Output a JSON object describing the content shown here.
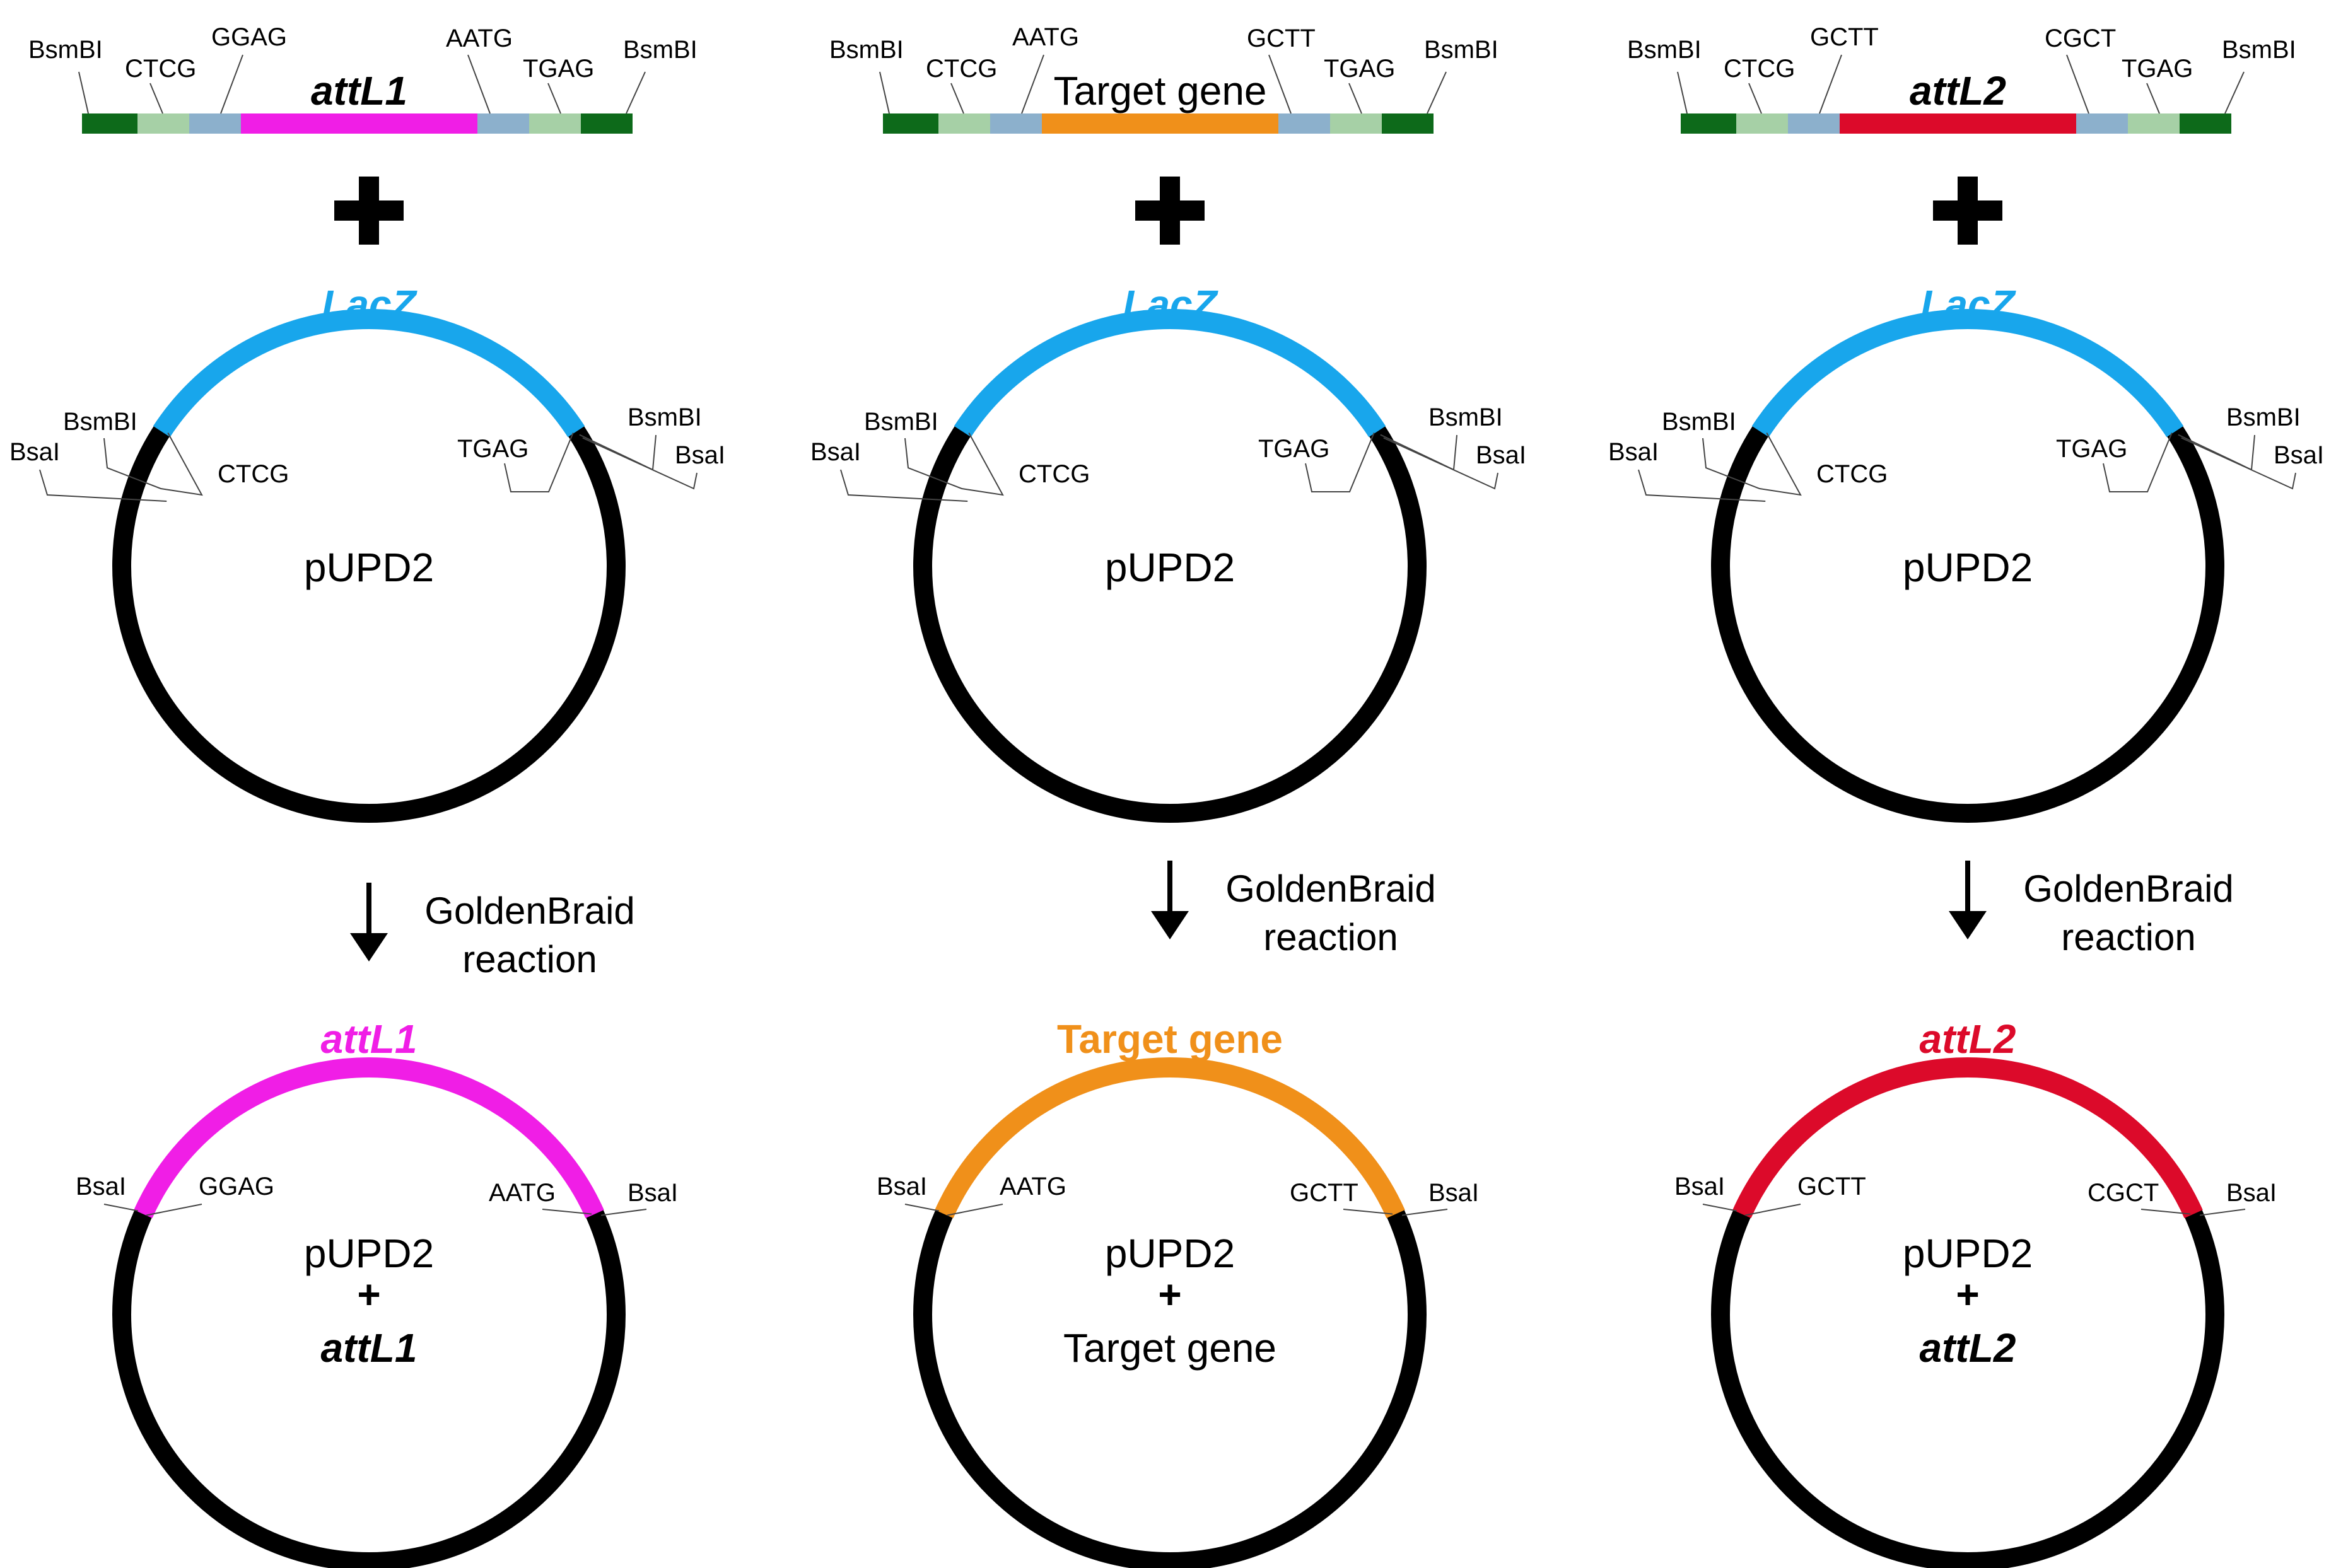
{
  "colors": {
    "bsmbi": "#0d6a1a",
    "light_green": "#a6d0a6",
    "light_blue": "#8cb0cc",
    "lacz": "#18a6ec",
    "backbone": "#000000",
    "attL1": "#f01ee6",
    "target": "#f0901a",
    "attL2": "#dc0a2a"
  },
  "panels": [
    {
      "insert": {
        "label": "attL1",
        "italic": true,
        "color_key": "attL1",
        "left_site": "BsmBI",
        "left_oh_outer": "CTCG",
        "left_oh_inner": "GGAG",
        "right_oh_inner": "AATG",
        "right_oh_outer": "TGAG",
        "right_site": "BsmBI"
      },
      "plus_icon": "plus-icon",
      "vector": {
        "arc_label": "LacZ",
        "name": "pUPD2",
        "left_bsai": "BsaI",
        "left_bsmbi": "BsmBI",
        "left_oh": "CTCG",
        "right_oh": "TGAG",
        "right_bsmbi": "BsmBI",
        "right_bsai": "BsaI"
      },
      "reaction": {
        "line1": "GoldenBraid",
        "line2": "reaction"
      },
      "product": {
        "arc_label": "attL1",
        "italic": true,
        "color_key": "attL1",
        "name_line1": "pUPD2",
        "name_line2": "+",
        "name_line3": "attL1",
        "left_site": "BsaI",
        "left_oh": "GGAG",
        "right_oh": "AATG",
        "right_site": "BsaI"
      }
    },
    {
      "insert": {
        "label": "Target gene",
        "italic": false,
        "color_key": "target",
        "left_site": "BsmBI",
        "left_oh_outer": "CTCG",
        "left_oh_inner": "AATG",
        "right_oh_inner": "GCTT",
        "right_oh_outer": "TGAG",
        "right_site": "BsmBI"
      },
      "plus_icon": "plus-icon",
      "vector": {
        "arc_label": "LacZ",
        "name": "pUPD2",
        "left_bsai": "BsaI",
        "left_bsmbi": "BsmBI",
        "left_oh": "CTCG",
        "right_oh": "TGAG",
        "right_bsmbi": "BsmBI",
        "right_bsai": "BsaI"
      },
      "reaction": {
        "line1": "GoldenBraid",
        "line2": "reaction"
      },
      "product": {
        "arc_label": "Target gene",
        "italic": false,
        "color_key": "target",
        "name_line1": "pUPD2",
        "name_line2": "+",
        "name_line3": "Target gene",
        "left_site": "BsaI",
        "left_oh": "AATG",
        "right_oh": "GCTT",
        "right_site": "BsaI"
      }
    },
    {
      "insert": {
        "label": "attL2",
        "italic": true,
        "color_key": "attL2",
        "left_site": "BsmBI",
        "left_oh_outer": "CTCG",
        "left_oh_inner": "GCTT",
        "right_oh_inner": "CGCT",
        "right_oh_outer": "TGAG",
        "right_site": "BsmBI"
      },
      "plus_icon": "plus-icon",
      "vector": {
        "arc_label": "LacZ",
        "name": "pUPD2",
        "left_bsai": "BsaI",
        "left_bsmbi": "BsmBI",
        "left_oh": "CTCG",
        "right_oh": "TGAG",
        "right_bsmbi": "BsmBI",
        "right_bsai": "BsaI"
      },
      "reaction": {
        "line1": "GoldenBraid",
        "line2": "reaction"
      },
      "product": {
        "arc_label": "attL2",
        "italic": true,
        "color_key": "attL2",
        "name_line1": "pUPD2",
        "name_line2": "+",
        "name_line3": "attL2",
        "left_site": "BsaI",
        "left_oh": "GCTT",
        "right_oh": "CGCT",
        "right_site": "BsaI"
      }
    }
  ]
}
